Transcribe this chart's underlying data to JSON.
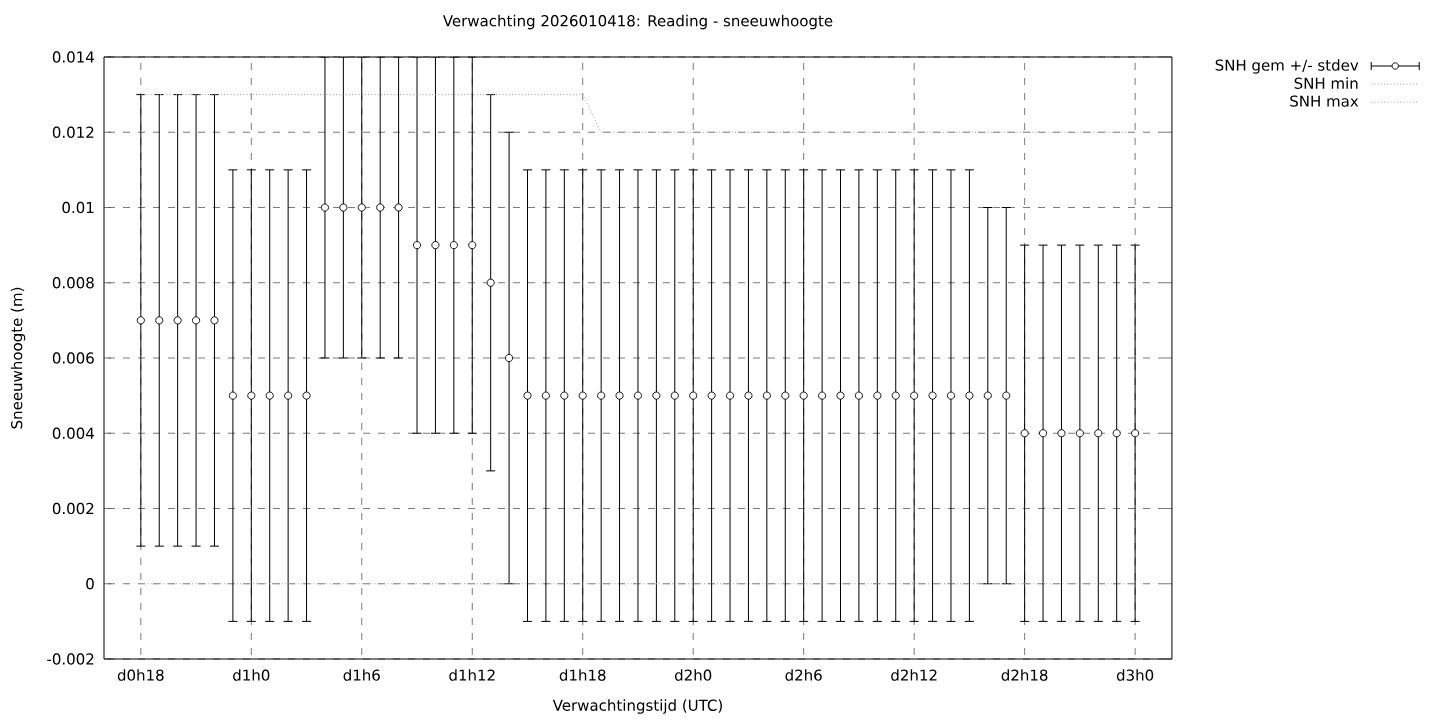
{
  "chart_data": {
    "type": "scatter",
    "title": "Verwachting 2026010418: Reading - sneeuwhoogte",
    "xlabel": "Verwachtingstijd (UTC)",
    "ylabel": "Sneeuwhoogte (m)",
    "categories": [
      "d0h18",
      null,
      null,
      null,
      null,
      null,
      "d1h0",
      null,
      null,
      null,
      null,
      null,
      "d1h6",
      null,
      null,
      null,
      null,
      null,
      "d1h12",
      null,
      null,
      null,
      null,
      null,
      "d1h18",
      null,
      null,
      null,
      null,
      null,
      "d2h0",
      null,
      null,
      null,
      null,
      null,
      "d2h6",
      null,
      null,
      null,
      null,
      null,
      "d2h12",
      null,
      null,
      null,
      null,
      null,
      "d2h18",
      null,
      null,
      null,
      null,
      null,
      "d3h0"
    ],
    "ylim": [
      -0.002,
      0.014
    ],
    "yticks": [
      -0.002,
      0,
      0.002,
      0.004,
      0.006,
      0.008,
      0.01,
      0.012,
      0.014
    ],
    "grid": true,
    "legend": "top right",
    "series": [
      {
        "name": "SNH gem +/- stdev",
        "color": "#000000",
        "marker": "circle",
        "values": [
          0.007,
          0.007,
          0.007,
          0.007,
          0.007,
          0.005,
          0.005,
          0.005,
          0.005,
          0.005,
          0.01,
          0.01,
          0.01,
          0.01,
          0.01,
          0.009,
          0.009,
          0.009,
          0.009,
          0.008,
          0.006,
          0.005,
          0.005,
          0.005,
          0.005,
          0.005,
          0.005,
          0.005,
          0.005,
          0.005,
          0.005,
          0.005,
          0.005,
          0.005,
          0.005,
          0.005,
          0.005,
          0.005,
          0.005,
          0.005,
          0.005,
          0.005,
          0.005,
          0.005,
          0.005,
          0.005,
          0.005,
          0.005,
          0.004,
          0.004,
          0.004,
          0.004,
          0.004,
          0.004,
          0.004
        ],
        "errors": [
          0.006,
          0.006,
          0.006,
          0.006,
          0.006,
          0.006,
          0.006,
          0.006,
          0.006,
          0.006,
          0.004,
          0.004,
          0.004,
          0.004,
          0.004,
          0.005,
          0.005,
          0.005,
          0.005,
          0.005,
          0.006,
          0.006,
          0.006,
          0.006,
          0.006,
          0.006,
          0.006,
          0.006,
          0.006,
          0.006,
          0.006,
          0.006,
          0.006,
          0.006,
          0.006,
          0.006,
          0.006,
          0.006,
          0.006,
          0.006,
          0.006,
          0.006,
          0.006,
          0.006,
          0.006,
          0.006,
          0.005,
          0.005,
          0.005,
          0.005,
          0.005,
          0.005,
          0.005,
          0.005,
          0.005
        ]
      },
      {
        "name": "SNH min",
        "type": "line",
        "color": "#a0a0a0",
        "line_style": "dotted",
        "marker": "none",
        "values": [
          0,
          0,
          0,
          0,
          0,
          0,
          0,
          0,
          0,
          0,
          0,
          0,
          0,
          0,
          0,
          0,
          0,
          0,
          0,
          0,
          0,
          0,
          0,
          0,
          0,
          0,
          0,
          0,
          0,
          0,
          0,
          0,
          0,
          0,
          0,
          0,
          0,
          0,
          0,
          0,
          0,
          0,
          0,
          0,
          0,
          0,
          0,
          0,
          0,
          0,
          0,
          0,
          0,
          0,
          0
        ]
      },
      {
        "name": "SNH max",
        "type": "line",
        "color": "#a0a0a0",
        "line_style": "dotted",
        "marker": "none",
        "values": [
          0.013,
          0.013,
          0.013,
          0.013,
          0.013,
          0.013,
          0.013,
          0.013,
          0.013,
          0.013,
          0.013,
          0.013,
          0.013,
          0.013,
          0.013,
          0.013,
          0.013,
          0.013,
          0.013,
          0.013,
          0.013,
          0.013,
          0.013,
          0.013,
          0.013,
          0.012,
          0.012,
          0.012,
          0.012,
          0.012,
          0.012,
          0.012,
          0.012,
          0.012,
          0.012,
          0.012,
          0.012,
          0.012,
          0.012,
          0.012,
          0.012,
          0.012,
          0.012,
          0.012,
          0.012,
          0.012,
          0.012,
          0.012,
          0.012,
          0.012,
          0.012,
          0.012,
          0.012,
          0.012,
          0.012
        ]
      }
    ]
  }
}
